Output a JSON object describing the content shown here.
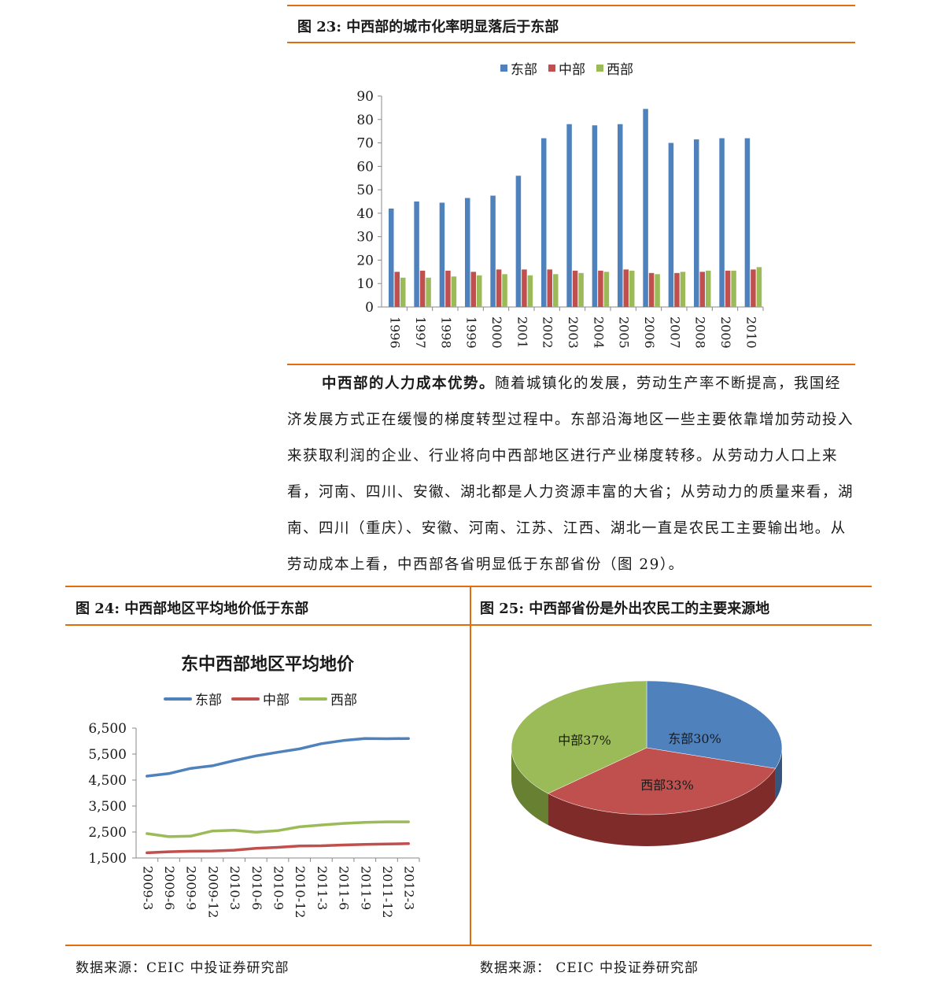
{
  "fig23": {
    "title": "图 23:  中西部的城市化率明显落后于东部",
    "legend": [
      "东部",
      "中部",
      "西部"
    ],
    "colors": [
      "#4f81bd",
      "#c0504d",
      "#9bbb59"
    ]
  },
  "paragraph": {
    "lead": "中西部的人力成本优势。",
    "text": "随着城镇化的发展，劳动生产率不断提高，我国经济发展方式正在缓慢的梯度转型过程中。东部沿海地区一些主要依靠增加劳动投入来获取利润的企业、行业将向中西部地区进行产业梯度转移。从劳动力人口上来看，河南、四川、安徽、湖北都是人力资源丰富的大省；从劳动力的质量来看，湖南、四川（重庆）、安徽、河南、江苏、江西、湖北一直是农民工主要输出地。从劳动成本上看，中西部各省明显低于东部省份（图 29）。"
  },
  "fig24": {
    "title": "图 24:  中西部地区平均地价低于东部",
    "chart_title": "东中西部地区平均地价",
    "legend": [
      "东部",
      "中部",
      "西部"
    ],
    "colors": [
      "#4f81bd",
      "#c0504d",
      "#9bbb59"
    ],
    "source": "数据来源：CEIC  中投证券研究部"
  },
  "fig25": {
    "title": "图 25:  中西部省份是外出农民工的主要来源地",
    "labels": [
      "东部30%",
      "西部33%",
      "中部37%"
    ],
    "source": "数据来源：    CEIC  中投证券研究部"
  },
  "chart_data": [
    {
      "type": "bar",
      "categories": [
        "1996",
        "1997",
        "1998",
        "1999",
        "2000",
        "2001",
        "2002",
        "2003",
        "2004",
        "2005",
        "2006",
        "2007",
        "2008",
        "2009",
        "2010"
      ],
      "series": [
        {
          "name": "东部",
          "values": [
            42,
            45,
            44.5,
            46.5,
            47.5,
            56,
            72,
            78,
            77.5,
            78,
            84.5,
            70,
            71.5,
            72,
            72
          ]
        },
        {
          "name": "中部",
          "values": [
            15,
            15.5,
            15.5,
            15,
            16,
            16,
            16,
            15.5,
            15.5,
            16,
            14.5,
            14.5,
            15,
            15.5,
            16
          ]
        },
        {
          "name": "西部",
          "values": [
            12.5,
            12.5,
            13,
            13.5,
            14,
            13.5,
            14,
            14.5,
            15,
            15.5,
            14,
            15,
            15.5,
            15.5,
            17
          ]
        }
      ],
      "yticks": [
        "0",
        "10",
        "20",
        "30",
        "40",
        "50",
        "60",
        "70",
        "80",
        "90"
      ],
      "ylim": [
        0,
        90
      ]
    },
    {
      "type": "line",
      "title": "东中西部地区平均地价",
      "categories": [
        "2009-3",
        "2009-6",
        "2009-9",
        "2009-12",
        "2010-3",
        "2010-6",
        "2010-9",
        "2010-12",
        "2011-3",
        "2011-6",
        "2011-9",
        "2011-12",
        "2012-3"
      ],
      "series": [
        {
          "name": "东部",
          "values": [
            4650,
            4750,
            4950,
            5050,
            5250,
            5430,
            5570,
            5700,
            5900,
            6020,
            6100,
            6090,
            6100
          ]
        },
        {
          "name": "中部",
          "values": [
            1700,
            1740,
            1760,
            1770,
            1800,
            1870,
            1910,
            1960,
            1970,
            2000,
            2020,
            2040,
            2050
          ]
        },
        {
          "name": "西部",
          "values": [
            2440,
            2320,
            2340,
            2540,
            2570,
            2490,
            2550,
            2700,
            2770,
            2830,
            2870,
            2890,
            2890
          ]
        }
      ],
      "yticks": [
        "6,500",
        "5,500",
        "4,500",
        "3,500",
        "2,500",
        "1,500"
      ],
      "ylim": [
        1500,
        6500
      ]
    },
    {
      "type": "pie",
      "categories": [
        "东部",
        "西部",
        "中部"
      ],
      "values": [
        30,
        33,
        37
      ],
      "colors": [
        "#4f81bd",
        "#c0504d",
        "#9bbb59"
      ]
    }
  ]
}
